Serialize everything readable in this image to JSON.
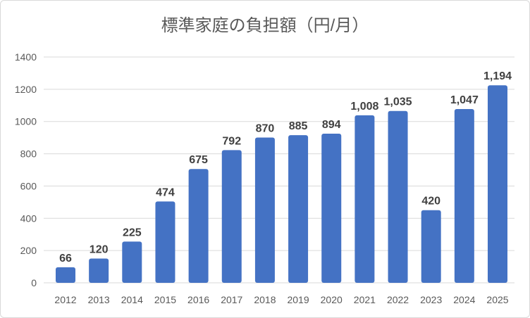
{
  "chart_data": {
    "type": "bar",
    "title": "標準家庭の負担額（円/月）",
    "xlabel": "",
    "ylabel": "",
    "categories": [
      "2012",
      "2013",
      "2014",
      "2015",
      "2016",
      "2017",
      "2018",
      "2019",
      "2020",
      "2021",
      "2022",
      "2023",
      "2024",
      "2025"
    ],
    "values": [
      66,
      120,
      225,
      474,
      675,
      792,
      870,
      885,
      894,
      1008,
      1035,
      420,
      1047,
      1194
    ],
    "data_labels": [
      "66",
      "120",
      "225",
      "474",
      "675",
      "792",
      "870",
      "885",
      "894",
      "1,008",
      "1,035",
      "420",
      "1,047",
      "1,194"
    ],
    "ylim": [
      0,
      1400
    ],
    "yticks": [
      "0",
      "200",
      "400",
      "600",
      "800",
      "1000",
      "1200",
      "1400"
    ],
    "grid": true,
    "bar_color": "#4472C4"
  }
}
